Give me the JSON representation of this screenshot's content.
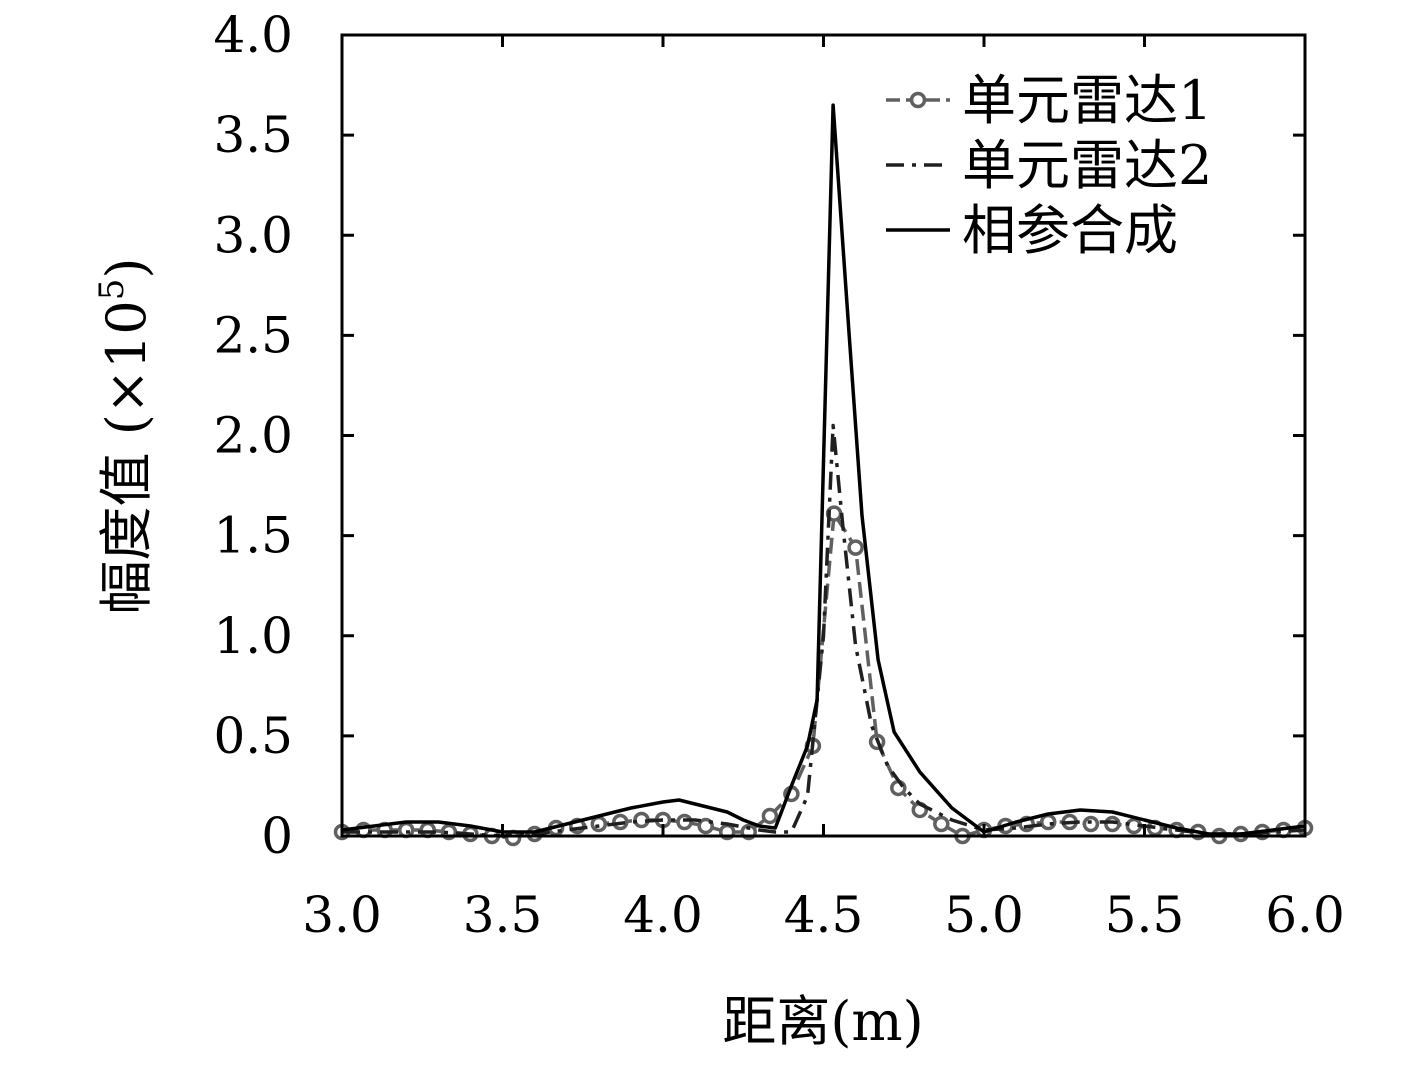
{
  "chart_data": {
    "type": "line",
    "xlabel": "距离(m)",
    "ylabel": "幅度值 (×10",
    "ylabel_exponent": "5",
    "ylabel_close": ")",
    "xlim": [
      3.0,
      6.0
    ],
    "ylim": [
      0,
      4.0
    ],
    "x_ticks": [
      "3.0",
      "3.5",
      "4.0",
      "4.5",
      "5.0",
      "5.5",
      "6.0"
    ],
    "y_ticks": [
      "0",
      "0.5",
      "1.0",
      "1.5",
      "2.0",
      "2.5",
      "3.0",
      "3.5",
      "4.0"
    ],
    "legend_position": "top-right",
    "grid": false,
    "series": [
      {
        "name": "单元雷达1",
        "style": "dashed-circle",
        "color": "#606060",
        "x": [
          3.0,
          3.067,
          3.133,
          3.2,
          3.267,
          3.333,
          3.4,
          3.467,
          3.533,
          3.6,
          3.667,
          3.733,
          3.8,
          3.867,
          3.933,
          4.0,
          4.067,
          4.133,
          4.2,
          4.267,
          4.333,
          4.4,
          4.467,
          4.533,
          4.6,
          4.667,
          4.733,
          4.8,
          4.867,
          4.933,
          5.0,
          5.067,
          5.133,
          5.2,
          5.267,
          5.333,
          5.4,
          5.467,
          5.533,
          5.6,
          5.667,
          5.733,
          5.8,
          5.867,
          5.933,
          6.0
        ],
        "y": [
          0.02,
          0.03,
          0.03,
          0.03,
          0.03,
          0.02,
          0.01,
          0.0,
          -0.01,
          0.01,
          0.04,
          0.05,
          0.06,
          0.07,
          0.08,
          0.08,
          0.07,
          0.05,
          0.02,
          0.02,
          0.1,
          0.21,
          0.45,
          1.61,
          1.44,
          0.47,
          0.24,
          0.13,
          0.06,
          0.0,
          0.03,
          0.05,
          0.06,
          0.07,
          0.07,
          0.06,
          0.06,
          0.05,
          0.04,
          0.03,
          0.02,
          0.0,
          0.01,
          0.02,
          0.03,
          0.04
        ]
      },
      {
        "name": "单元雷达2",
        "style": "dash-dot",
        "color": "#202020",
        "x": [
          3.0,
          3.1,
          3.2,
          3.3,
          3.4,
          3.5,
          3.6,
          3.7,
          3.8,
          3.9,
          4.0,
          4.1,
          4.2,
          4.3,
          4.35,
          4.4,
          4.45,
          4.5,
          4.53,
          4.56,
          4.6,
          4.65,
          4.7,
          4.75,
          4.8,
          4.9,
          5.0,
          5.1,
          5.2,
          5.3,
          5.4,
          5.5,
          5.6,
          5.7,
          5.8,
          5.9,
          6.0
        ],
        "y": [
          0.02,
          0.02,
          0.02,
          0.02,
          0.01,
          0.0,
          0.01,
          0.03,
          0.05,
          0.07,
          0.08,
          0.08,
          0.06,
          0.03,
          0.02,
          0.02,
          0.2,
          1.0,
          2.05,
          1.55,
          0.95,
          0.55,
          0.35,
          0.24,
          0.16,
          0.08,
          0.03,
          0.04,
          0.06,
          0.07,
          0.07,
          0.05,
          0.03,
          0.01,
          0.01,
          0.02,
          0.03
        ]
      },
      {
        "name": "相参合成",
        "style": "solid",
        "color": "#000000",
        "x": [
          3.0,
          3.1,
          3.2,
          3.3,
          3.4,
          3.5,
          3.6,
          3.7,
          3.8,
          3.9,
          4.0,
          4.05,
          4.1,
          4.2,
          4.25,
          4.3,
          4.35,
          4.4,
          4.45,
          4.48,
          4.53,
          4.58,
          4.62,
          4.67,
          4.72,
          4.8,
          4.9,
          5.0,
          5.1,
          5.2,
          5.3,
          5.4,
          5.5,
          5.6,
          5.7,
          5.8,
          5.9,
          6.0
        ],
        "y": [
          0.03,
          0.05,
          0.07,
          0.07,
          0.05,
          0.02,
          0.02,
          0.06,
          0.1,
          0.14,
          0.17,
          0.18,
          0.16,
          0.12,
          0.08,
          0.05,
          0.04,
          0.25,
          0.45,
          0.68,
          3.65,
          2.5,
          1.6,
          0.88,
          0.52,
          0.32,
          0.14,
          0.02,
          0.07,
          0.11,
          0.13,
          0.12,
          0.08,
          0.04,
          0.01,
          0.01,
          0.03,
          0.05
        ]
      }
    ]
  }
}
